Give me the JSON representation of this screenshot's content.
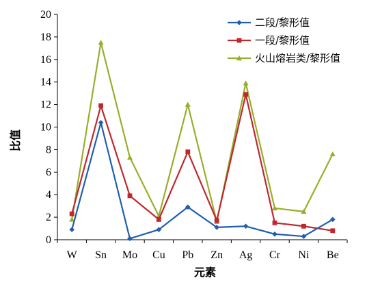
{
  "chart_data": {
    "type": "line",
    "categories": [
      "W",
      "Sn",
      "Mo",
      "Cu",
      "Pb",
      "Zn",
      "Ag",
      "Cr",
      "Ni",
      "Be"
    ],
    "series": [
      {
        "name": "二段/黎形值",
        "color": "#1f5fae",
        "marker": "diamond",
        "values": [
          0.9,
          10.4,
          0.1,
          0.9,
          2.9,
          1.1,
          1.2,
          0.5,
          0.3,
          1.8
        ]
      },
      {
        "name": "一段/黎形值",
        "color": "#c0272d",
        "marker": "square",
        "values": [
          2.3,
          11.9,
          3.9,
          1.8,
          7.8,
          1.7,
          12.9,
          1.5,
          1.2,
          0.8
        ]
      },
      {
        "name": "火山熔岩类/黎形值",
        "color": "#9aad2a",
        "marker": "triangle",
        "values": [
          1.8,
          17.5,
          7.3,
          2.1,
          12.0,
          1.6,
          13.9,
          2.8,
          2.5,
          7.6
        ]
      }
    ],
    "xlabel": "元素",
    "ylabel": "比值",
    "ylim": [
      0,
      20
    ],
    "yticks": [
      0,
      2,
      4,
      6,
      8,
      10,
      12,
      14,
      16,
      18,
      20
    ],
    "legend_position": "top-right",
    "grid": false
  }
}
